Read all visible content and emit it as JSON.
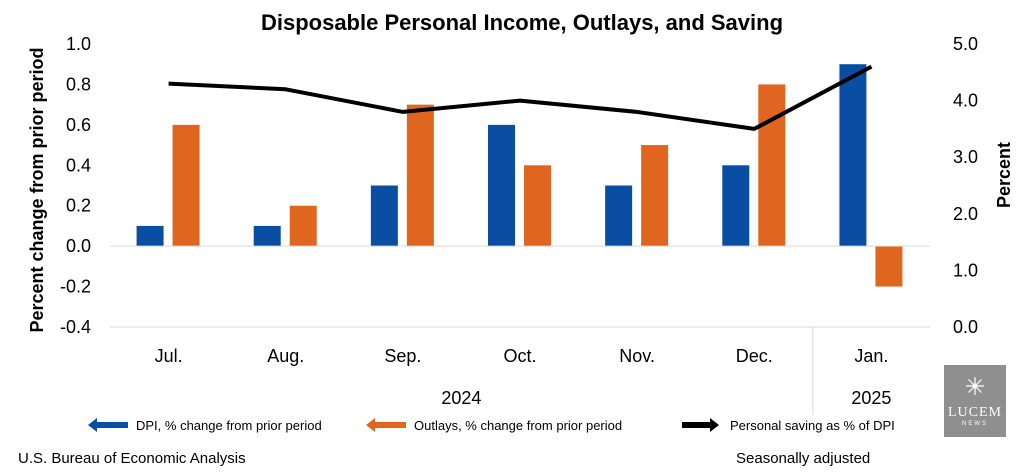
{
  "chart_data": {
    "type": "bar",
    "title": "Disposable Personal Income, Outlays, and Saving",
    "ylabel": "Percent change from prior period",
    "y2label": "Percent",
    "ylim": [
      -0.4,
      1.0
    ],
    "y2lim": [
      0.0,
      5.0
    ],
    "yticks": [
      "1.0",
      "0.8",
      "0.6",
      "0.4",
      "0.2",
      "0.0",
      "-0.2",
      "-0.4"
    ],
    "y2ticks": [
      "5.0",
      "4.0",
      "3.0",
      "2.0",
      "1.0",
      "0.0"
    ],
    "categories": [
      "Jul.",
      "Aug.",
      "Sep.",
      "Oct.",
      "Nov.",
      "Dec.",
      "Jan."
    ],
    "year_groups": [
      {
        "label": "2024",
        "categories": [
          "Jul.",
          "Aug.",
          "Sep.",
          "Oct.",
          "Nov.",
          "Dec."
        ]
      },
      {
        "label": "2025",
        "categories": [
          "Jan."
        ]
      }
    ],
    "series": [
      {
        "name": "DPI, % change from prior period",
        "type": "bar",
        "axis": "left",
        "color": "#0a4ea3",
        "values": [
          0.1,
          0.1,
          0.3,
          0.6,
          0.3,
          0.4,
          0.9
        ]
      },
      {
        "name": "Outlays, % change from prior period",
        "type": "bar",
        "axis": "left",
        "color": "#e0661f",
        "values": [
          0.6,
          0.2,
          0.7,
          0.4,
          0.5,
          0.8,
          -0.2
        ]
      },
      {
        "name": "Personal saving as % of DPI",
        "type": "line",
        "axis": "right",
        "color": "#000000",
        "values": [
          4.3,
          4.2,
          3.8,
          4.0,
          3.8,
          3.5,
          4.6
        ]
      }
    ],
    "legend_position": "bottom",
    "grid": false
  },
  "footer": {
    "source": "U.S. Bureau of Economic Analysis",
    "adjustment": "Seasonally adjusted"
  },
  "logo": {
    "word": "LUCEM",
    "sub": "NEWS"
  }
}
